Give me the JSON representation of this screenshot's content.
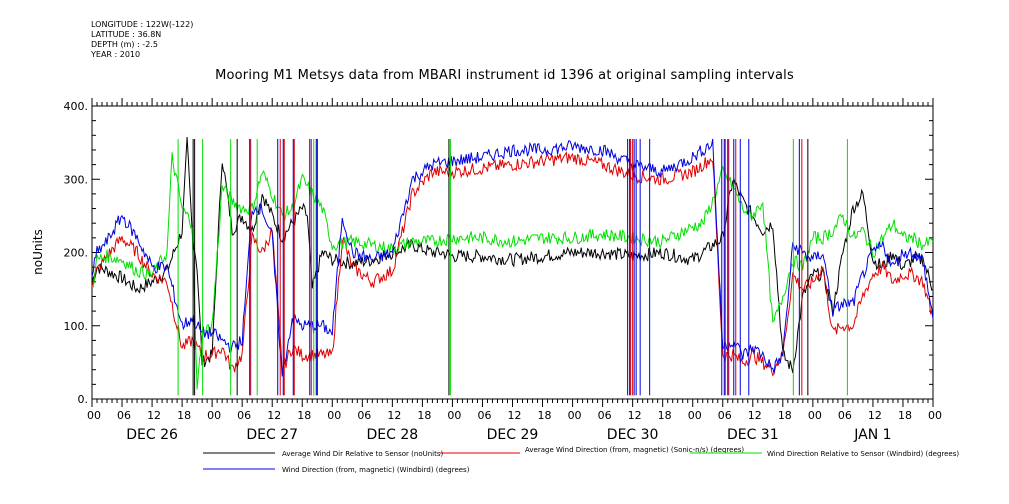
{
  "metadata": {
    "longitude": "LONGITUDE : 122W(-122)",
    "latitude": "LATITUDE : 36.8N",
    "depth": "DEPTH (m) : -2.5",
    "year": "YEAR : 2010"
  },
  "chart_data": {
    "type": "line",
    "title": "Mooring M1 Metsys data from MBARI instrument id 1396 at original sampling intervals",
    "ylabel": "noUnits",
    "xlabel": "",
    "ylim": [
      0,
      400
    ],
    "y_ticks": [
      "0.",
      "100.",
      "200.",
      "300.",
      "400."
    ],
    "x_hours_range": [
      0,
      168
    ],
    "x_tick_labels": [
      "00",
      "06",
      "12",
      "18",
      "00",
      "06",
      "12",
      "18",
      "00",
      "06",
      "12",
      "18",
      "00",
      "06",
      "12",
      "18",
      "00",
      "06",
      "12",
      "18",
      "00",
      "06",
      "12",
      "18",
      "00",
      "06",
      "12",
      "18",
      "00"
    ],
    "day_labels": [
      "DEC 26",
      "DEC 27",
      "DEC 28",
      "DEC 29",
      "DEC 30",
      "DEC 31",
      "JAN 1"
    ],
    "series": [
      {
        "name": "Average Wind Dir Relative to Sensor (noUnits)",
        "color": "#000000",
        "x": [
          0,
          1,
          3,
          6,
          9,
          12,
          15,
          18,
          19,
          20,
          21,
          22,
          24,
          26,
          28,
          30,
          32,
          34,
          36,
          38,
          40,
          42,
          43,
          44,
          46,
          48,
          52,
          56,
          60,
          64,
          66,
          68,
          70,
          72,
          78,
          84,
          90,
          96,
          102,
          108,
          114,
          120,
          122,
          124,
          126,
          128,
          130,
          132,
          134,
          136,
          138,
          140,
          142,
          144,
          146,
          148,
          150,
          152,
          154,
          156,
          158,
          160,
          162,
          164,
          166,
          168
        ],
        "y": [
          160,
          180,
          175,
          165,
          150,
          160,
          175,
          230,
          350,
          230,
          180,
          50,
          60,
          330,
          230,
          250,
          230,
          280,
          250,
          220,
          240,
          260,
          250,
          150,
          200,
          190,
          185,
          190,
          200,
          210,
          205,
          200,
          200,
          195,
          195,
          190,
          195,
          200,
          200,
          195,
          200,
          190,
          200,
          210,
          220,
          300,
          270,
          250,
          230,
          240,
          60,
          40,
          140,
          170,
          170,
          120,
          200,
          260,
          280,
          190,
          180,
          200,
          180,
          190,
          190,
          150
        ]
      },
      {
        "name": "Average Wind Direction (from, magnetic) (Sonic-n/s) (degrees)",
        "color": "#e00000",
        "x": [
          0,
          1,
          3,
          6,
          9,
          12,
          15,
          18,
          20,
          22,
          24,
          26,
          28,
          30,
          32,
          34,
          36,
          38,
          40,
          42,
          44,
          46,
          48,
          50,
          52,
          56,
          60,
          64,
          68,
          72,
          78,
          84,
          90,
          96,
          102,
          108,
          114,
          120,
          122,
          124,
          126,
          128,
          130,
          132,
          134,
          136,
          138,
          140,
          142,
          144,
          146,
          148,
          150,
          152,
          154,
          156,
          158,
          160,
          162,
          164,
          166,
          168
        ],
        "y": [
          160,
          175,
          195,
          220,
          200,
          170,
          160,
          70,
          80,
          60,
          60,
          70,
          40,
          60,
          220,
          200,
          230,
          40,
          70,
          60,
          60,
          60,
          60,
          220,
          180,
          160,
          175,
          280,
          310,
          310,
          315,
          320,
          325,
          330,
          320,
          305,
          300,
          310,
          320,
          330,
          60,
          60,
          50,
          60,
          50,
          40,
          60,
          170,
          150,
          160,
          180,
          90,
          100,
          100,
          140,
          170,
          180,
          160,
          170,
          170,
          160,
          110
        ]
      },
      {
        "name": "Wind Direction Relative to Sensor (Windbird) (degrees)",
        "color": "#00e000",
        "x": [
          0,
          1,
          3,
          6,
          9,
          12,
          15,
          16,
          18,
          20,
          21,
          22,
          24,
          26,
          28,
          30,
          32,
          34,
          36,
          38,
          40,
          42,
          44,
          46,
          48,
          52,
          56,
          60,
          64,
          68,
          72,
          78,
          84,
          90,
          96,
          102,
          108,
          114,
          120,
          122,
          124,
          126,
          128,
          130,
          132,
          134,
          136,
          138,
          140,
          142,
          144,
          146,
          148,
          150,
          152,
          154,
          156,
          158,
          160,
          162,
          164,
          166,
          168
        ],
        "y": [
          150,
          190,
          195,
          190,
          175,
          170,
          200,
          330,
          260,
          240,
          10,
          90,
          100,
          290,
          270,
          260,
          260,
          310,
          280,
          250,
          260,
          300,
          280,
          260,
          210,
          215,
          210,
          205,
          215,
          215,
          220,
          220,
          215,
          220,
          220,
          225,
          220,
          215,
          235,
          240,
          270,
          310,
          290,
          260,
          250,
          270,
          100,
          140,
          190,
          180,
          220,
          220,
          230,
          250,
          220,
          230,
          200,
          220,
          240,
          220,
          220,
          210,
          215
        ]
      },
      {
        "name": "Wind Direction (from, magnetic) (Windbird) (degrees)",
        "color": "#0000e0",
        "x": [
          0,
          1,
          3,
          6,
          9,
          12,
          15,
          18,
          20,
          22,
          24,
          26,
          28,
          30,
          32,
          34,
          36,
          38,
          40,
          42,
          44,
          46,
          48,
          50,
          52,
          56,
          60,
          64,
          68,
          72,
          78,
          84,
          90,
          96,
          102,
          108,
          114,
          120,
          122,
          124,
          126,
          128,
          130,
          132,
          134,
          136,
          138,
          140,
          142,
          144,
          146,
          148,
          150,
          152,
          154,
          156,
          158,
          160,
          162,
          164,
          166,
          168
        ],
        "y": [
          170,
          200,
          215,
          250,
          220,
          180,
          180,
          100,
          110,
          90,
          90,
          80,
          70,
          80,
          260,
          260,
          220,
          30,
          110,
          100,
          100,
          100,
          90,
          250,
          200,
          190,
          200,
          300,
          320,
          325,
          330,
          340,
          340,
          345,
          340,
          320,
          310,
          330,
          340,
          350,
          70,
          80,
          60,
          70,
          60,
          40,
          60,
          210,
          200,
          190,
          200,
          120,
          130,
          130,
          170,
          200,
          210,
          180,
          200,
          200,
          190,
          110
        ]
      }
    ],
    "spikes": [
      {
        "color": "#000000",
        "x": [
          20.2,
          20.5,
          29.0,
          45.0,
          71.3,
          143.0
        ]
      },
      {
        "color": "#e00000",
        "x": [
          31.7,
          37.6,
          38.4,
          40.4,
          43.8,
          107.6,
          108.0,
          126.5,
          127.2,
          128.6,
          141.8
        ]
      },
      {
        "color": "#00e000",
        "x": [
          17.2,
          22.1,
          27.7,
          33.0,
          44.3,
          71.6,
          140.1,
          150.9
        ]
      },
      {
        "color": "#0000e0",
        "x": [
          31.5,
          37.1,
          38.2,
          40.2,
          43.5,
          44.8,
          107.0,
          107.4,
          108.3,
          108.7,
          109.5,
          111.4,
          125.8,
          126.3,
          127.0,
          128.2,
          129.5,
          131.2,
          141.3
        ]
      }
    ],
    "legend": [
      {
        "text": "Average Wind Dir Relative to Sensor (noUnits)",
        "color": "#000000"
      },
      {
        "text": "Average Wind Direction (from, magnetic) (Sonic-n/s) (degrees)",
        "color": "#e00000"
      },
      {
        "text": "Wind Direction Relative to Sensor (Windbird) (degrees)",
        "color": "#00e000"
      },
      {
        "text": "Wind Direction (from, magnetic) (Windbird) (degrees)",
        "color": "#0000e0"
      }
    ],
    "grid": false,
    "legend_position": "bottom"
  }
}
